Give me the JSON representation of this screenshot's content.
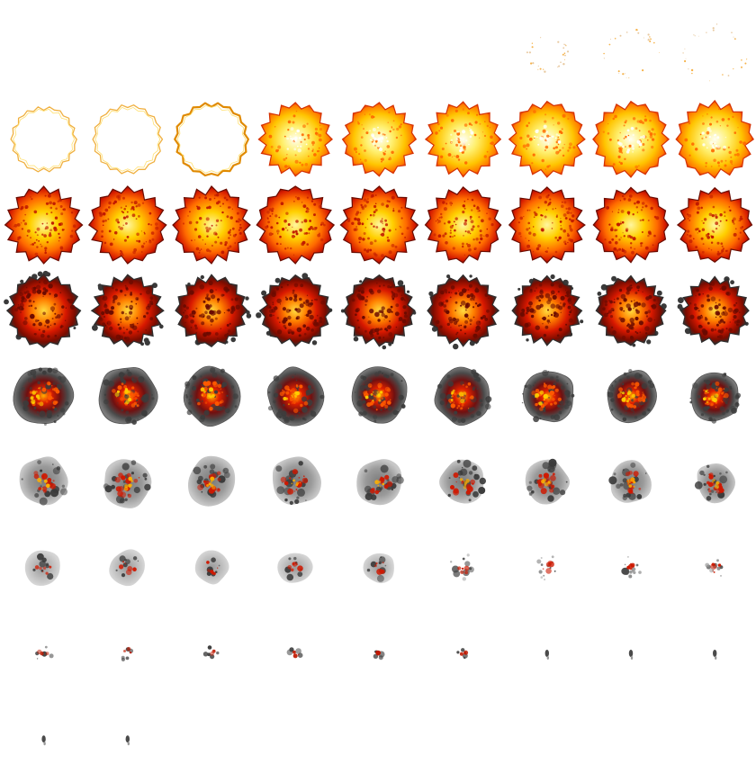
{
  "sheet": {
    "columns": 9,
    "rows": 9,
    "frame_count": 74,
    "background": "#ffffff",
    "palette": {
      "white_hot": "#fffbe0",
      "yellow": "#ffe000",
      "orange": "#ff8c00",
      "red": "#e01a00",
      "dark_red": "#8b0b00",
      "smoke_dark": "#3a3a3a",
      "smoke_light": "#c8c8c8"
    },
    "frames": [
      {
        "stage": "empty",
        "size": 0
      },
      {
        "stage": "empty",
        "size": 0
      },
      {
        "stage": "empty",
        "size": 0
      },
      {
        "stage": "empty",
        "size": 0
      },
      {
        "stage": "empty",
        "size": 0
      },
      {
        "stage": "empty",
        "size": 0
      },
      {
        "stage": "spark",
        "size": 0.55
      },
      {
        "stage": "spark",
        "size": 0.75
      },
      {
        "stage": "spark",
        "size": 0.85
      },
      {
        "stage": "ring",
        "size": 0.85
      },
      {
        "stage": "ring",
        "size": 0.9
      },
      {
        "stage": "ring-bright",
        "size": 0.95
      },
      {
        "stage": "fire-yellow",
        "size": 0.95
      },
      {
        "stage": "fire-yellow",
        "size": 0.95
      },
      {
        "stage": "fire-yellow",
        "size": 0.97
      },
      {
        "stage": "fire-yellow",
        "size": 0.98
      },
      {
        "stage": "fire-yellow",
        "size": 0.98
      },
      {
        "stage": "fire-yellow",
        "size": 1.0
      },
      {
        "stage": "fire-orange",
        "size": 1.0
      },
      {
        "stage": "fire-orange",
        "size": 1.0
      },
      {
        "stage": "fire-orange",
        "size": 1.0
      },
      {
        "stage": "fire-orange",
        "size": 1.0
      },
      {
        "stage": "fire-orange",
        "size": 1.0
      },
      {
        "stage": "fire-orange",
        "size": 0.98
      },
      {
        "stage": "fire-orange",
        "size": 0.98
      },
      {
        "stage": "fire-orange",
        "size": 0.97
      },
      {
        "stage": "fire-orange",
        "size": 0.96
      },
      {
        "stage": "fire-red",
        "size": 0.95
      },
      {
        "stage": "fire-red",
        "size": 0.93
      },
      {
        "stage": "fire-red",
        "size": 0.93
      },
      {
        "stage": "fire-red",
        "size": 0.92
      },
      {
        "stage": "fire-red",
        "size": 0.92
      },
      {
        "stage": "fire-red",
        "size": 0.92
      },
      {
        "stage": "fire-red",
        "size": 0.9
      },
      {
        "stage": "fire-red",
        "size": 0.9
      },
      {
        "stage": "fire-red",
        "size": 0.88
      },
      {
        "stage": "smoke-fire",
        "size": 0.86
      },
      {
        "stage": "smoke-fire",
        "size": 0.86
      },
      {
        "stage": "smoke-fire",
        "size": 0.86
      },
      {
        "stage": "smoke-fire",
        "size": 0.84
      },
      {
        "stage": "smoke-fire",
        "size": 0.84
      },
      {
        "stage": "smoke-fire",
        "size": 0.82
      },
      {
        "stage": "smoke-fire",
        "size": 0.8
      },
      {
        "stage": "smoke-fire",
        "size": 0.78
      },
      {
        "stage": "smoke-fire",
        "size": 0.76
      },
      {
        "stage": "smoke-gray",
        "size": 0.74
      },
      {
        "stage": "smoke-gray",
        "size": 0.74
      },
      {
        "stage": "smoke-gray",
        "size": 0.72
      },
      {
        "stage": "smoke-gray",
        "size": 0.72
      },
      {
        "stage": "smoke-gray",
        "size": 0.7
      },
      {
        "stage": "smoke-gray",
        "size": 0.68
      },
      {
        "stage": "smoke-gray",
        "size": 0.66
      },
      {
        "stage": "smoke-gray",
        "size": 0.62
      },
      {
        "stage": "smoke-gray",
        "size": 0.58
      },
      {
        "stage": "smoke-fade",
        "size": 0.55
      },
      {
        "stage": "smoke-fade",
        "size": 0.55
      },
      {
        "stage": "smoke-fade",
        "size": 0.5
      },
      {
        "stage": "smoke-fade",
        "size": 0.5
      },
      {
        "stage": "smoke-fade",
        "size": 0.48
      },
      {
        "stage": "ember",
        "size": 0.44
      },
      {
        "stage": "ember",
        "size": 0.4
      },
      {
        "stage": "ember",
        "size": 0.38
      },
      {
        "stage": "ember",
        "size": 0.36
      },
      {
        "stage": "ember-small",
        "size": 0.32
      },
      {
        "stage": "ember-small",
        "size": 0.3
      },
      {
        "stage": "ember-small",
        "size": 0.26
      },
      {
        "stage": "ember-small",
        "size": 0.24
      },
      {
        "stage": "ember-small",
        "size": 0.22
      },
      {
        "stage": "ember-small",
        "size": 0.2
      },
      {
        "stage": "speck",
        "size": 0.12
      },
      {
        "stage": "speck",
        "size": 0.1
      },
      {
        "stage": "speck",
        "size": 0.09
      },
      {
        "stage": "speck",
        "size": 0.1
      },
      {
        "stage": "speck",
        "size": 0.08
      }
    ]
  }
}
